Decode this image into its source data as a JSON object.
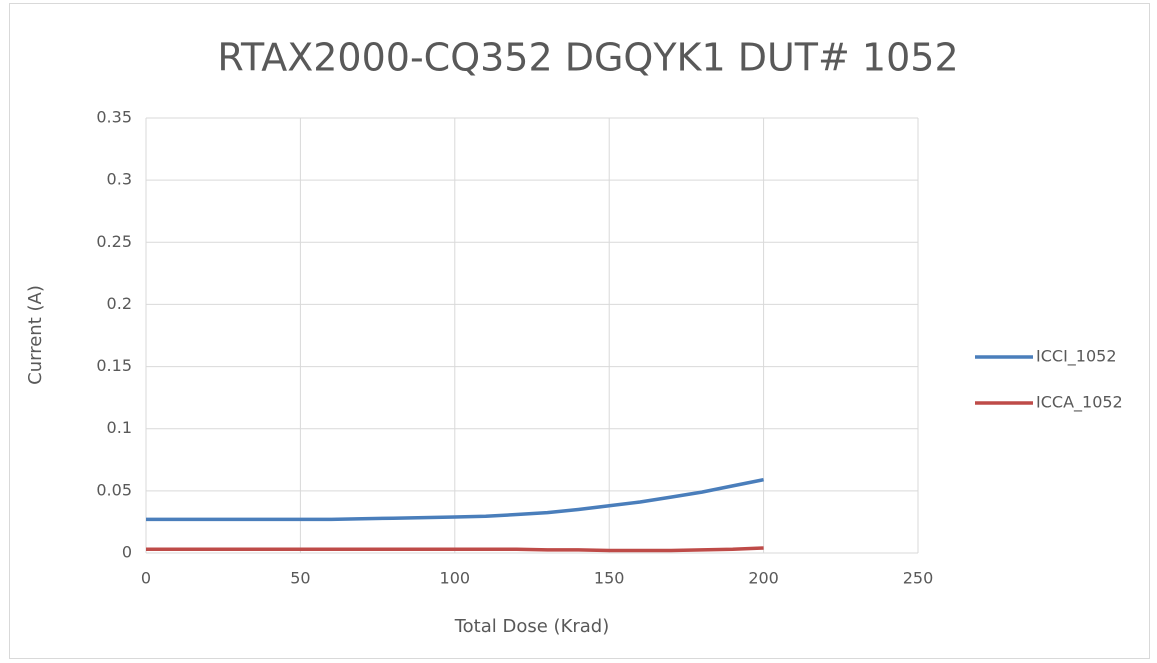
{
  "chart_data": {
    "type": "line",
    "title": "RTAX2000-CQ352 DGQYK1 DUT# 1052",
    "xlabel": "Total Dose (Krad)",
    "ylabel": "Current (A)",
    "x": [
      0,
      10,
      20,
      30,
      40,
      50,
      60,
      70,
      80,
      90,
      100,
      110,
      120,
      130,
      140,
      150,
      160,
      170,
      180,
      190,
      200
    ],
    "series": [
      {
        "name": "ICCI_1052",
        "color": "#4a7ebb",
        "values": [
          0.027,
          0.027,
          0.027,
          0.027,
          0.027,
          0.027,
          0.027,
          0.0275,
          0.028,
          0.0285,
          0.029,
          0.0295,
          0.031,
          0.0325,
          0.035,
          0.038,
          0.041,
          0.045,
          0.049,
          0.054,
          0.059
        ]
      },
      {
        "name": "ICCA_1052",
        "color": "#be4b48",
        "values": [
          0.003,
          0.003,
          0.003,
          0.003,
          0.003,
          0.003,
          0.003,
          0.003,
          0.003,
          0.003,
          0.003,
          0.003,
          0.003,
          0.0025,
          0.0025,
          0.002,
          0.002,
          0.002,
          0.0025,
          0.003,
          0.004
        ]
      }
    ],
    "xlim": [
      0,
      250
    ],
    "xticks": [
      0,
      50,
      100,
      150,
      200,
      250
    ],
    "ylim": [
      0,
      0.35
    ],
    "yticks": [
      0,
      0.05,
      0.1,
      0.15,
      0.2,
      0.25,
      0.3,
      0.35
    ],
    "grid": true,
    "legend": "right"
  }
}
